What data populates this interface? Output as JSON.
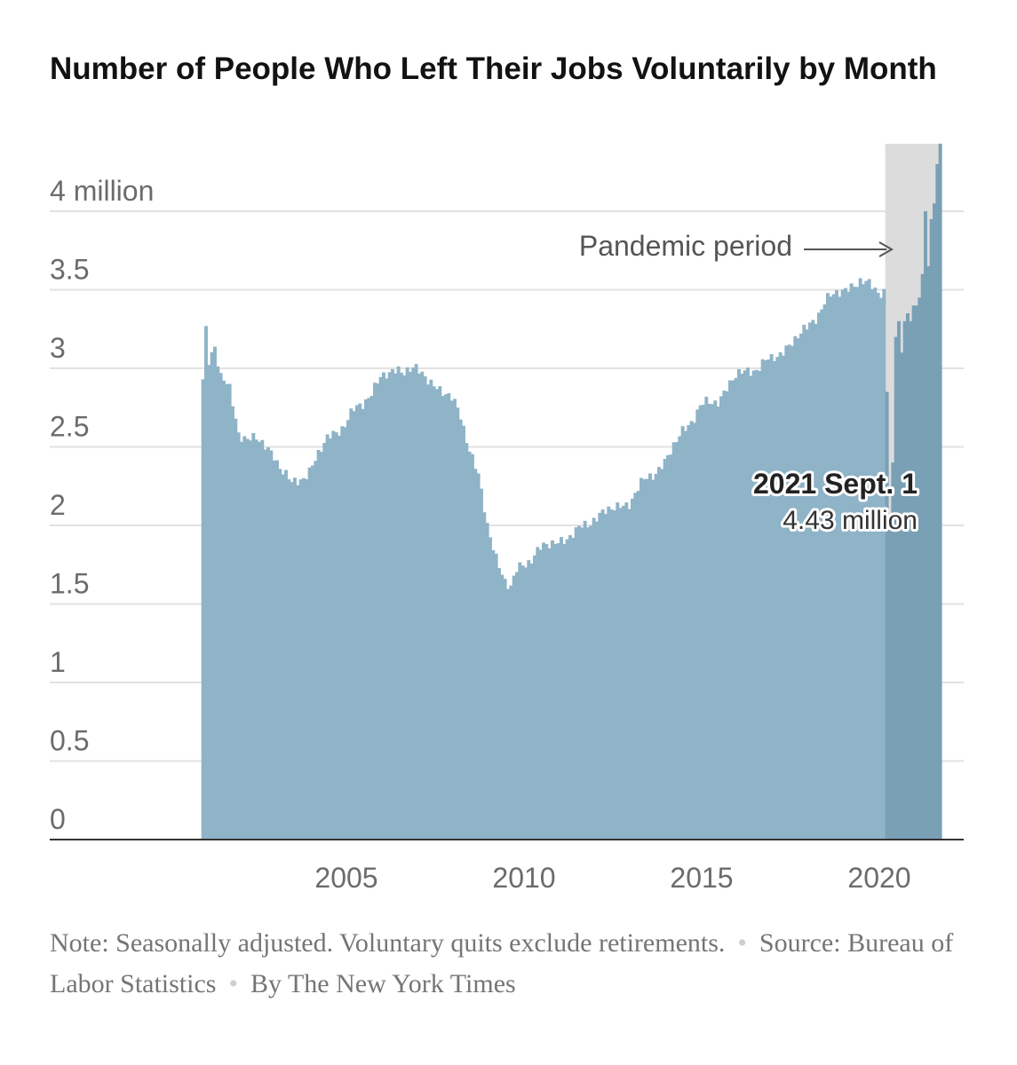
{
  "title": "Number of People Who Left Their Jobs Voluntarily by Month",
  "annotation": {
    "pandemic_label": "Pandemic period",
    "callout_date": "2021 Sept. 1",
    "callout_value": "4.43 million"
  },
  "footnote": {
    "note": "Note: Seasonally adjusted. Voluntary quits exclude retirements.",
    "source": "Source: Bureau of Labor Statistics",
    "byline": "By The New York Times"
  },
  "colors": {
    "bars": "#8fb3c7",
    "bars_pandemic": "#7aa0b6",
    "pandemic_shade": "#dcdcdc",
    "grid": "#e2e2e2",
    "axis_text": "#6b6b6b",
    "title": "#121212"
  },
  "chart_data": {
    "type": "bar",
    "title": "Number of People Who Left Their Jobs Voluntarily by Month",
    "xlabel": "",
    "ylabel": "",
    "y_unit": "million",
    "ylim": [
      0,
      4.43
    ],
    "y_ticks": [
      0,
      0.5,
      1,
      1.5,
      2,
      2.5,
      3,
      3.5,
      4
    ],
    "y_tick_labels": [
      "0",
      "0.5",
      "1",
      "1.5",
      "2",
      "2.5",
      "3",
      "3.5",
      "4 million"
    ],
    "x_ticks": [
      2005,
      2010,
      2015,
      2020
    ],
    "x_tick_labels": [
      "2005",
      "2010",
      "2015",
      "2020"
    ],
    "start": "2000-12",
    "end": "2021-09",
    "grid": true,
    "shaded_period": {
      "label": "Pandemic period",
      "start": "2020-03",
      "end": "2021-09"
    },
    "highlight": {
      "date": "2021-09",
      "label": "2021 Sept. 1",
      "value": 4.43
    },
    "keypoints": [
      [
        "2000-12",
        2.93
      ],
      [
        "2001-01",
        3.25
      ],
      [
        "2001-02",
        3.05
      ],
      [
        "2001-04",
        3.15
      ],
      [
        "2001-06",
        2.95
      ],
      [
        "2001-09",
        2.85
      ],
      [
        "2001-12",
        2.6
      ],
      [
        "2002-03",
        2.55
      ],
      [
        "2002-06",
        2.55
      ],
      [
        "2002-09",
        2.5
      ],
      [
        "2002-12",
        2.45
      ],
      [
        "2003-03",
        2.35
      ],
      [
        "2003-06",
        2.25
      ],
      [
        "2003-09",
        2.3
      ],
      [
        "2003-12",
        2.35
      ],
      [
        "2004-03",
        2.45
      ],
      [
        "2004-06",
        2.55
      ],
      [
        "2004-09",
        2.6
      ],
      [
        "2004-12",
        2.65
      ],
      [
        "2005-03",
        2.72
      ],
      [
        "2005-06",
        2.78
      ],
      [
        "2005-09",
        2.85
      ],
      [
        "2005-12",
        2.95
      ],
      [
        "2006-03",
        2.95
      ],
      [
        "2006-06",
        3.0
      ],
      [
        "2006-09",
        3.0
      ],
      [
        "2006-12",
        2.98
      ],
      [
        "2007-03",
        2.95
      ],
      [
        "2007-06",
        2.9
      ],
      [
        "2007-09",
        2.85
      ],
      [
        "2007-12",
        2.8
      ],
      [
        "2008-03",
        2.7
      ],
      [
        "2008-06",
        2.5
      ],
      [
        "2008-09",
        2.3
      ],
      [
        "2008-12",
        2.0
      ],
      [
        "2009-03",
        1.8
      ],
      [
        "2009-06",
        1.65
      ],
      [
        "2009-08",
        1.6
      ],
      [
        "2009-10",
        1.7
      ],
      [
        "2009-12",
        1.75
      ],
      [
        "2010-06",
        1.85
      ],
      [
        "2010-12",
        1.9
      ],
      [
        "2011-06",
        1.95
      ],
      [
        "2011-12",
        2.05
      ],
      [
        "2012-06",
        2.1
      ],
      [
        "2012-12",
        2.15
      ],
      [
        "2013-06",
        2.3
      ],
      [
        "2013-12",
        2.4
      ],
      [
        "2014-06",
        2.6
      ],
      [
        "2014-12",
        2.75
      ],
      [
        "2015-06",
        2.8
      ],
      [
        "2015-12",
        2.95
      ],
      [
        "2016-06",
        3.0
      ],
      [
        "2016-12",
        3.05
      ],
      [
        "2017-06",
        3.15
      ],
      [
        "2017-12",
        3.25
      ],
      [
        "2018-06",
        3.42
      ],
      [
        "2018-12",
        3.5
      ],
      [
        "2019-06",
        3.55
      ],
      [
        "2019-12",
        3.5
      ],
      [
        "2020-02",
        3.5
      ],
      [
        "2020-03",
        2.85
      ],
      [
        "2020-04",
        2.05
      ],
      [
        "2020-05",
        2.4
      ],
      [
        "2020-06",
        3.2
      ],
      [
        "2020-07",
        3.3
      ],
      [
        "2020-08",
        3.1
      ],
      [
        "2020-09",
        3.3
      ],
      [
        "2020-10",
        3.35
      ],
      [
        "2020-11",
        3.3
      ],
      [
        "2020-12",
        3.4
      ],
      [
        "2021-01",
        3.4
      ],
      [
        "2021-02",
        3.45
      ],
      [
        "2021-03",
        3.6
      ],
      [
        "2021-04",
        4.0
      ],
      [
        "2021-05",
        3.65
      ],
      [
        "2021-06",
        3.95
      ],
      [
        "2021-07",
        4.05
      ],
      [
        "2021-08",
        4.3
      ],
      [
        "2021-09",
        4.43
      ]
    ]
  }
}
